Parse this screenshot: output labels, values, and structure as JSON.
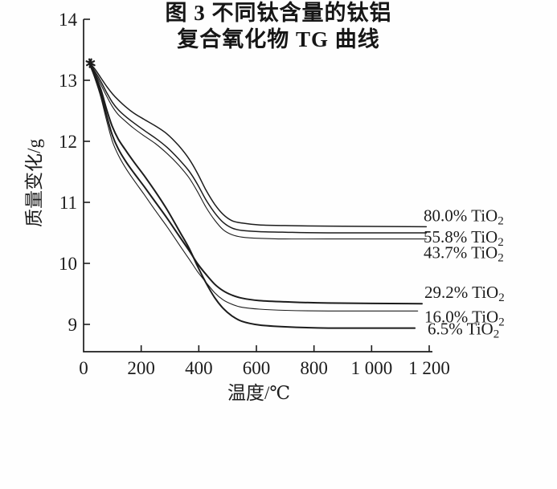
{
  "figure": {
    "background": "#fefefe",
    "ink_color": "#1c1c1c"
  },
  "chart_data": {
    "type": "line",
    "title": "",
    "xlabel": "温度/℃",
    "ylabel": "质量变化/g",
    "x_range": [
      0,
      1200
    ],
    "y_range": [
      9,
      14
    ],
    "grid": false,
    "legend_position": "inline-right-of-curves",
    "x_ticks": [
      0,
      200,
      400,
      600,
      800,
      1000,
      1200
    ],
    "x_tick_labels": [
      "0",
      "200",
      "400",
      "600",
      "800",
      "1 000",
      "1 200"
    ],
    "y_ticks": [
      14,
      13,
      12,
      11,
      10,
      9
    ],
    "y_tick_labels": [
      "14",
      "13",
      "12",
      "11",
      "10",
      "9"
    ],
    "series": [
      {
        "name": "80.0% TiO2",
        "label_prefix": "80.0% TiO",
        "label_sub": "2",
        "stroke_width": 1.5,
        "label_offset_y": -14,
        "label_x": 527,
        "points": [
          [
            18,
            13.3
          ],
          [
            40,
            13.18
          ],
          [
            60,
            13.04
          ],
          [
            80,
            12.9
          ],
          [
            100,
            12.78
          ],
          [
            120,
            12.68
          ],
          [
            145,
            12.57
          ],
          [
            175,
            12.46
          ],
          [
            210,
            12.36
          ],
          [
            250,
            12.25
          ],
          [
            290,
            12.12
          ],
          [
            330,
            11.93
          ],
          [
            365,
            11.72
          ],
          [
            395,
            11.48
          ],
          [
            425,
            11.2
          ],
          [
            455,
            10.97
          ],
          [
            485,
            10.8
          ],
          [
            515,
            10.7
          ],
          [
            550,
            10.66
          ],
          [
            610,
            10.63
          ],
          [
            700,
            10.62
          ],
          [
            850,
            10.61
          ],
          [
            1190,
            10.6
          ]
        ]
      },
      {
        "name": "55.8% TiO2",
        "label_prefix": "55.8% TiO",
        "label_sub": "2",
        "stroke_width": 1.5,
        "label_offset_y": 5,
        "label_x": 527,
        "points": [
          [
            18,
            13.3
          ],
          [
            40,
            13.14
          ],
          [
            60,
            12.98
          ],
          [
            80,
            12.8
          ],
          [
            100,
            12.64
          ],
          [
            120,
            12.52
          ],
          [
            145,
            12.41
          ],
          [
            175,
            12.3
          ],
          [
            210,
            12.18
          ],
          [
            250,
            12.05
          ],
          [
            290,
            11.9
          ],
          [
            330,
            11.71
          ],
          [
            365,
            11.52
          ],
          [
            395,
            11.3
          ],
          [
            425,
            11.04
          ],
          [
            455,
            10.83
          ],
          [
            485,
            10.67
          ],
          [
            515,
            10.58
          ],
          [
            550,
            10.54
          ],
          [
            610,
            10.52
          ],
          [
            700,
            10.51
          ],
          [
            850,
            10.5
          ],
          [
            1190,
            10.5
          ]
        ]
      },
      {
        "name": "43.7% TiO2",
        "label_prefix": "43.7% TiO",
        "label_sub": "2",
        "stroke_width": 1.1,
        "label_offset_y": 17,
        "label_x": 527,
        "points": [
          [
            18,
            13.3
          ],
          [
            40,
            13.11
          ],
          [
            60,
            12.93
          ],
          [
            80,
            12.74
          ],
          [
            100,
            12.57
          ],
          [
            120,
            12.44
          ],
          [
            145,
            12.33
          ],
          [
            175,
            12.21
          ],
          [
            210,
            12.09
          ],
          [
            250,
            11.96
          ],
          [
            290,
            11.8
          ],
          [
            330,
            11.61
          ],
          [
            365,
            11.41
          ],
          [
            395,
            11.18
          ],
          [
            425,
            10.92
          ],
          [
            455,
            10.71
          ],
          [
            485,
            10.55
          ],
          [
            515,
            10.47
          ],
          [
            550,
            10.43
          ],
          [
            610,
            10.41
          ],
          [
            700,
            10.4
          ],
          [
            850,
            10.4
          ],
          [
            1190,
            10.4
          ]
        ]
      },
      {
        "name": "29.2% TiO2",
        "label_prefix": "29.2% TiO",
        "label_sub": "2",
        "stroke_width": 2.0,
        "label_offset_y": -14,
        "label_x": 528,
        "points": [
          [
            18,
            13.3
          ],
          [
            40,
            13.05
          ],
          [
            60,
            12.78
          ],
          [
            80,
            12.42
          ],
          [
            100,
            12.1
          ],
          [
            120,
            11.88
          ],
          [
            145,
            11.68
          ],
          [
            175,
            11.48
          ],
          [
            210,
            11.26
          ],
          [
            250,
            11.0
          ],
          [
            290,
            10.74
          ],
          [
            330,
            10.46
          ],
          [
            365,
            10.22
          ],
          [
            395,
            10.0
          ],
          [
            425,
            9.82
          ],
          [
            455,
            9.66
          ],
          [
            485,
            9.55
          ],
          [
            515,
            9.48
          ],
          [
            550,
            9.43
          ],
          [
            610,
            9.39
          ],
          [
            700,
            9.37
          ],
          [
            850,
            9.35
          ],
          [
            1175,
            9.34
          ]
        ]
      },
      {
        "name": "16.0% TiO2",
        "label_prefix": "16.0% TiO",
        "label_sub": "2",
        "stroke_width": 1.1,
        "label_offset_y": 7,
        "label_x": 528,
        "points": [
          [
            18,
            13.3
          ],
          [
            40,
            13.02
          ],
          [
            60,
            12.72
          ],
          [
            80,
            12.34
          ],
          [
            100,
            12.0
          ],
          [
            120,
            11.78
          ],
          [
            145,
            11.57
          ],
          [
            175,
            11.36
          ],
          [
            210,
            11.13
          ],
          [
            250,
            10.86
          ],
          [
            290,
            10.6
          ],
          [
            330,
            10.32
          ],
          [
            365,
            10.08
          ],
          [
            395,
            9.87
          ],
          [
            425,
            9.69
          ],
          [
            455,
            9.52
          ],
          [
            485,
            9.4
          ],
          [
            515,
            9.33
          ],
          [
            550,
            9.28
          ],
          [
            610,
            9.25
          ],
          [
            700,
            9.23
          ],
          [
            850,
            9.22
          ],
          [
            1160,
            9.22
          ]
        ]
      },
      {
        "name": "6.5% TiO2",
        "label_prefix": "6.5% TiO",
        "label_sub": "2",
        "stroke_width": 2.0,
        "label_offset_y": 1,
        "label_x": 532,
        "points": [
          [
            18,
            13.3
          ],
          [
            40,
            13.08
          ],
          [
            60,
            12.85
          ],
          [
            80,
            12.52
          ],
          [
            100,
            12.24
          ],
          [
            120,
            12.04
          ],
          [
            145,
            11.86
          ],
          [
            175,
            11.66
          ],
          [
            210,
            11.44
          ],
          [
            250,
            11.17
          ],
          [
            290,
            10.88
          ],
          [
            330,
            10.55
          ],
          [
            365,
            10.26
          ],
          [
            395,
            9.96
          ],
          [
            425,
            9.68
          ],
          [
            455,
            9.44
          ],
          [
            485,
            9.26
          ],
          [
            515,
            9.14
          ],
          [
            550,
            9.05
          ],
          [
            610,
            8.99
          ],
          [
            700,
            8.96
          ],
          [
            850,
            8.94
          ],
          [
            1150,
            8.94
          ]
        ]
      }
    ]
  },
  "caption": {
    "line1": "图 3  不同钛含量的钛铝",
    "line2": "复合氧化物 TG 曲线"
  }
}
